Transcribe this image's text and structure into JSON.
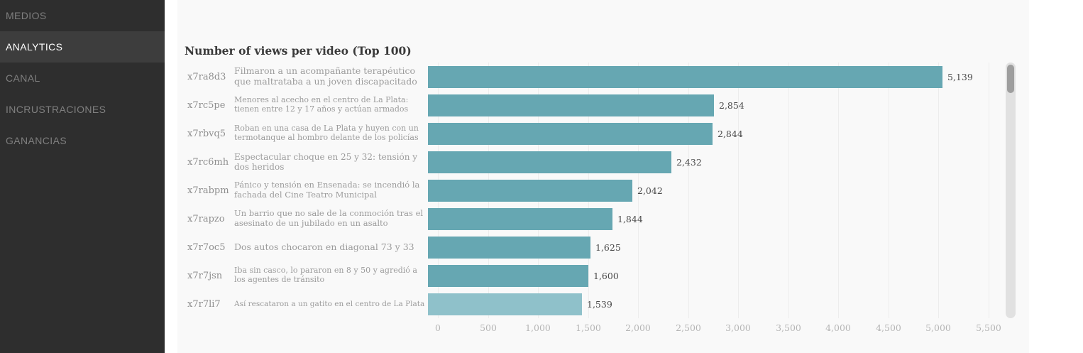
{
  "sidebar": {
    "items": [
      {
        "label": "MEDIOS",
        "active": false
      },
      {
        "label": "ANALYTICS",
        "active": true
      },
      {
        "label": "CANAL",
        "active": false
      },
      {
        "label": "INCRUSTRACIONES",
        "active": false
      },
      {
        "label": "GANANCIAS",
        "active": false
      }
    ]
  },
  "header": {
    "title": "Number of views per video (Top 100)"
  },
  "chart_data": {
    "type": "bar",
    "orientation": "horizontal",
    "title": "Number of views per video (Top 100)",
    "xlabel": "",
    "ylabel": "",
    "xlim": [
      0,
      5500
    ],
    "grid": true,
    "bar_color": "#66a7b2",
    "highlight_bar_color": "#8fc1ca",
    "rows": [
      {
        "id": "x7ra8d3",
        "label": "Filmaron a un acompañante terapéutico que maltrataba a un joven discapacitado",
        "value": 5139,
        "value_display": "5,139",
        "highlighted": false
      },
      {
        "id": "x7rc5pe",
        "label": "Menores al acecho en el centro de La Plata: tienen entre 12 y 17 años y actúan armados",
        "value": 2854,
        "value_display": "2,854",
        "highlighted": false
      },
      {
        "id": "x7rbvq5",
        "label": "Roban en una casa de La Plata y huyen con un termotanque al hombro delante de los policías",
        "value": 2844,
        "value_display": "2,844",
        "highlighted": false
      },
      {
        "id": "x7rc6mh",
        "label": "Espectacular choque en 25 y 32: tensión y dos heridos",
        "value": 2432,
        "value_display": "2,432",
        "highlighted": false
      },
      {
        "id": "x7rabpm",
        "label": "Pánico y tensión en Ensenada: se incendió la fachada del Cine Teatro Municipal",
        "value": 2042,
        "value_display": "2,042",
        "highlighted": false
      },
      {
        "id": "x7rapzo",
        "label": "Un barrio que no sale de la conmoción tras el asesinato de un jubilado en un asalto",
        "value": 1844,
        "value_display": "1,844",
        "highlighted": false
      },
      {
        "id": "x7r7oc5",
        "label": "Dos autos chocaron en diagonal 73 y 33",
        "value": 1625,
        "value_display": "1,625",
        "highlighted": false
      },
      {
        "id": "x7r7jsn",
        "label": "Iba sin casco, lo pararon en 8 y 50 y agredió a los agentes de tránsito",
        "value": 1600,
        "value_display": "1,600",
        "highlighted": false
      },
      {
        "id": "x7r7li7",
        "label": "Así rescataron a un gatito en el centro de La Plata",
        "value": 1539,
        "value_display": "1,539",
        "highlighted": true
      }
    ],
    "x_tick_values": [
      0,
      500,
      1000,
      1500,
      2000,
      2500,
      3000,
      3500,
      4000,
      4500,
      5000,
      5500
    ],
    "x_ticks": [
      "0",
      "500",
      "1,000",
      "1,500",
      "2,000",
      "2,500",
      "3,000",
      "3,500",
      "4,000",
      "4,500",
      "5,000",
      "5,500"
    ],
    "legend": false
  },
  "colors": {
    "sidebar_bg": "#2e2e2e",
    "sidebar_active_bg": "#3d3d3d",
    "panel_bg": "#f9f9f9",
    "gridline": "#ededed"
  }
}
